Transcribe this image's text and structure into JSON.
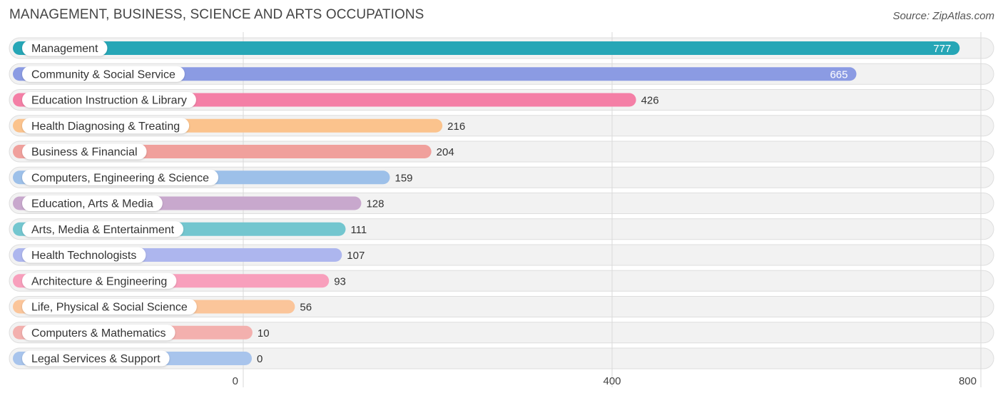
{
  "chart_data": {
    "type": "bar",
    "orientation": "horizontal",
    "title": "MANAGEMENT, BUSINESS, SCIENCE AND ARTS OCCUPATIONS",
    "source": "Source: ZipAtlas.com",
    "categories": [
      "Management",
      "Community & Social Service",
      "Education Instruction & Library",
      "Health Diagnosing & Treating",
      "Business & Financial",
      "Computers, Engineering & Science",
      "Education, Arts & Media",
      "Arts, Media & Entertainment",
      "Health Technologists",
      "Architecture & Engineering",
      "Life, Physical & Social Science",
      "Computers & Mathematics",
      "Legal Services & Support"
    ],
    "values": [
      777,
      665,
      426,
      216,
      204,
      159,
      128,
      111,
      107,
      93,
      56,
      10,
      0
    ],
    "value_labels": [
      "777",
      "665",
      "426",
      "216",
      "204",
      "159",
      "128",
      "111",
      "107",
      "93",
      "56",
      "10",
      "0"
    ],
    "colors": [
      "#26a6b6",
      "#8b9be3",
      "#f47fa6",
      "#fbc38d",
      "#f0a09c",
      "#9dc0e9",
      "#c8a8cd",
      "#73c6cf",
      "#adb6ee",
      "#f89fbc",
      "#fbc59a",
      "#f3b0ae",
      "#a8c4ec"
    ],
    "xticks": [
      0,
      400,
      800
    ],
    "xtick_labels": [
      "0",
      "400",
      "800"
    ],
    "xlim": [
      0,
      800
    ],
    "grid": true
  }
}
